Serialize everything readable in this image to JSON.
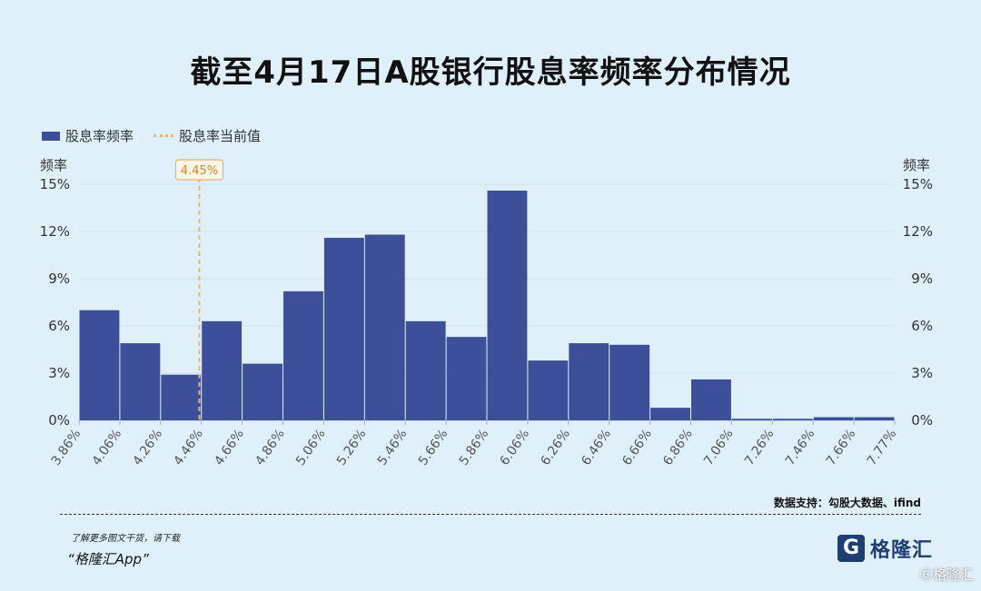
{
  "page": {
    "title": "截至4月17日A股银行股息率频率分布情况",
    "source": "数据支持：勾股大数据、ifind",
    "promo_line1": "了解更多图文干货，请下载",
    "promo_line2": "“格隆汇App”",
    "logo_name": "格隆汇",
    "logo_letter": "G",
    "corner_mark": "Ⓖ格隆汇"
  },
  "chart_data": {
    "type": "bar",
    "title": "截至4月17日A股银行股息率频率分布情况",
    "ylabel": "频率",
    "ylabel_right": "频率",
    "ylim": [
      0,
      15
    ],
    "yticks": [
      "0%",
      "3%",
      "6%",
      "9%",
      "12%",
      "15%"
    ],
    "x_edges": [
      "3.86%",
      "4.06%",
      "4.26%",
      "4.46%",
      "4.66%",
      "4.86%",
      "5.06%",
      "5.26%",
      "5.46%",
      "5.66%",
      "5.86%",
      "6.06%",
      "6.26%",
      "6.46%",
      "6.66%",
      "6.86%",
      "7.06%",
      "7.26%",
      "7.46%",
      "7.66%",
      "7.77%"
    ],
    "series": [
      {
        "name": "股息率频率",
        "values": [
          7.0,
          4.9,
          2.9,
          6.3,
          3.6,
          8.2,
          11.6,
          11.8,
          6.3,
          5.3,
          14.6,
          3.8,
          4.9,
          4.8,
          0.8,
          2.6,
          0.1,
          0.1,
          0.2,
          0.2
        ]
      }
    ],
    "reference_line": {
      "name": "股息率当前值",
      "value": 4.45,
      "label": "4.45%"
    },
    "colors": {
      "bar": "#3d4f98",
      "reference": "#e8b56c",
      "grid": "#cfe0ee"
    },
    "grid": true,
    "legend_position": "top-left"
  }
}
